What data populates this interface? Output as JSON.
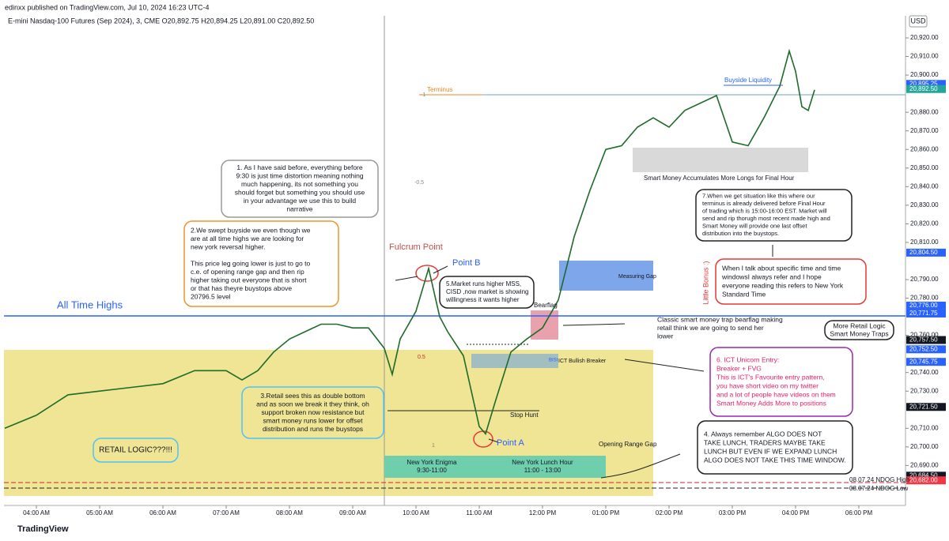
{
  "header": {
    "publisher": "edinxx published on TradingView.com, Jul 10, 2024 16:23 UTC-4",
    "footer": "TradingView"
  },
  "chart_data": {
    "type": "line",
    "title": "E-mini Nasdaq-100 Futures (Sep 2024), 3, CME  O20,892.75 H20,894.25 L20,891.00 C20,892.50",
    "currency": "USD",
    "x": [
      3.5,
      4,
      4.5,
      5,
      5.5,
      6,
      6.5,
      7,
      7.25,
      7.5,
      7.75,
      8,
      8.25,
      8.5,
      8.75,
      9,
      9.25,
      9.5,
      9.625,
      9.75,
      10,
      10.2,
      10.375,
      10.5,
      10.75,
      11,
      11.1,
      11.25,
      11.5,
      11.75,
      12,
      12.25,
      12.5,
      12.75,
      13,
      13.25,
      13.5,
      13.75,
      14,
      14.25,
      14.5,
      14.75,
      15,
      15.25,
      15.5,
      15.75,
      15.9,
      16,
      16.1,
      16.2,
      16.3
    ],
    "series": [
      {
        "name": "E-mini Nasdaq-100 Futures",
        "color": "#1e6b2a",
        "values": [
          20710,
          20717,
          20728,
          20730,
          20732,
          20734,
          20741,
          20741,
          20736,
          20741,
          20751,
          20758,
          20762,
          20766,
          20766,
          20764,
          20764,
          20753,
          20739,
          20758,
          20773,
          20796,
          20770,
          20762,
          20749,
          20711,
          20707,
          20724,
          20751,
          20758,
          20764,
          20779,
          20813,
          20838,
          20860,
          20862,
          20872,
          20877,
          20872,
          20881,
          20885,
          20889,
          20864,
          20862,
          20877,
          20894,
          20913,
          20902,
          20883,
          20881,
          20892
        ]
      }
    ],
    "xlim": [
      3.4875,
      17.7375
    ],
    "xticks": [
      {
        "value": 4,
        "label": "04:00 AM"
      },
      {
        "value": 5,
        "label": "05:00 AM"
      },
      {
        "value": 6,
        "label": "06:00 AM"
      },
      {
        "value": 7,
        "label": "07:00 AM"
      },
      {
        "value": 8,
        "label": "08:00 AM"
      },
      {
        "value": 9,
        "label": "09:00 AM"
      },
      {
        "value": 10,
        "label": "10:00 AM"
      },
      {
        "value": 11,
        "label": "11:00 AM"
      },
      {
        "value": 12,
        "label": "12:00 PM"
      },
      {
        "value": 13,
        "label": "01:00 PM"
      },
      {
        "value": 14,
        "label": "02:00 PM"
      },
      {
        "value": 15,
        "label": "03:00 PM"
      },
      {
        "value": 16,
        "label": "04:00 PM"
      },
      {
        "value": 17,
        "label": "06:00 PM"
      }
    ],
    "ylim": [
      20668.5,
      20928.5
    ],
    "yticks": [
      {
        "value": 20690,
        "label": "20,690.00"
      },
      {
        "value": 20700,
        "label": "20,700.00"
      },
      {
        "value": 20710,
        "label": "20,710.00"
      },
      {
        "value": 20730,
        "label": "20,730.00"
      },
      {
        "value": 20740,
        "label": "20,740.00"
      },
      {
        "value": 20760,
        "label": "20,760.00"
      },
      {
        "value": 20780,
        "label": "20,780.00"
      },
      {
        "value": 20790,
        "label": "20,790.00"
      },
      {
        "value": 20810,
        "label": "20,810.00"
      },
      {
        "value": 20820,
        "label": "20,820.00"
      },
      {
        "value": 20830,
        "label": "20,830.00"
      },
      {
        "value": 20840,
        "label": "20,840.00"
      },
      {
        "value": 20850,
        "label": "20,850.00"
      },
      {
        "value": 20860,
        "label": "20,860.00"
      },
      {
        "value": 20870,
        "label": "20,870.00"
      },
      {
        "value": 20880,
        "label": "20,880.00"
      },
      {
        "value": 20900,
        "label": "20,900.00"
      },
      {
        "value": 20910,
        "label": "20,910.00"
      },
      {
        "value": 20920,
        "label": "20,920.00"
      }
    ],
    "price_tags": [
      {
        "value": 20895.25,
        "label": "20,895.25",
        "color": "#2962ff"
      },
      {
        "value": 20892.5,
        "label": "20,892.50",
        "color": "#26a69a"
      },
      {
        "value": 20804.5,
        "label": "20,804.50",
        "color": "#2962ff"
      },
      {
        "value": 20776,
        "label": "20,776.00",
        "color": "#2962ff"
      },
      {
        "value": 20771.75,
        "label": "20,771.75",
        "color": "#2962ff"
      },
      {
        "value": 20757.5,
        "label": "20,757.50",
        "color": "#131722"
      },
      {
        "value": 20752.5,
        "label": "20,752.50",
        "color": "#2962ff"
      },
      {
        "value": 20745.75,
        "label": "20,745.75",
        "color": "#2962ff"
      },
      {
        "value": 20721.5,
        "label": "20,721.50",
        "color": "#131722"
      },
      {
        "value": 20684.5,
        "label": "20,684.50",
        "color": "#131722"
      },
      {
        "value": 20682,
        "label": "20,682.00",
        "color": "#f23645"
      }
    ],
    "labels": [
      "Fulcrum Point",
      "Point B",
      "Point A",
      "All Time Highs",
      "Terminus",
      "Buyside Liquidity",
      "Smart Money Accumulates More Longs for Final Hour",
      "Measuring Gap",
      "Bearflag",
      "ICT Bullish Breaker",
      "Stop Hunt",
      "Opening Range Gap",
      "08.07.24 NDOG High",
      "08.07.24 NDOG Low",
      "-1",
      "-0.5",
      "0.5",
      "1",
      "BISI",
      "Little Bonus :)"
    ],
    "notes": [
      [
        "1. As I have said before, everything before",
        "9:30 is just time distortion meaning nothing",
        "much happening, its not something you",
        "should forget but something you should use",
        "in your advantage we use this to build",
        "narrative"
      ],
      [
        "2.We swept buyside we even though we",
        "are at all time highs we are looking for",
        "new york reversal higher.",
        "",
        "This price leg going lower is just to go to",
        "c.e. of opening range gap and then rip",
        "higher taking out everyone that is short",
        "or that has theyre buystops above",
        "20796.5 level"
      ],
      [
        "3.Retail sees this as double bottom",
        "and as soon we break it they think, oh",
        "support broken now resistance but",
        "smart money runs lower for offset",
        "distribution and runs the buystops"
      ],
      [
        "RETAIL LOGIC???!!!"
      ],
      [
        "4. Always remember ALGO DOES NOT",
        "TAKE LUNCH, TRADERS MAYBE TAKE",
        "LUNCH BUT EVEN IF WE EXPAND LUNCH",
        "ALGO DOES NOT TAKE THIS TIME WINDOW."
      ],
      [
        "5.Market runs higher MSS,",
        "CISD ,now market is showing",
        "willingness it wants higher"
      ],
      [
        "6. ICT Unicorn Entry:",
        "Breaker + FVG",
        "This is ICT's Favourite entry pattern,",
        "you have short video on my twitter",
        "and a lot of people have videos on them",
        "Smart Money Adds More to positions"
      ],
      [
        "7.When we get situation like this where our",
        "terminus is already delivered before Final Hour",
        "of trading which is 15:00-16:00 EST. Market will",
        "send and rip thorugh most recent made high and",
        "Smart Money will provide one last offset",
        "distribution into the buystops."
      ],
      [
        "When I talk about specific time and time",
        "windowsI always refer and I hope",
        "everyone reading this refers to New York",
        "Standard Time"
      ],
      [
        "Classic smart money trap bearflag making",
        "retail think we are going to send her",
        "lower"
      ],
      [
        "More Retail Logic",
        "Smart Money Traps"
      ],
      [
        "New York Enigma",
        "9:30-11:00"
      ],
      [
        "New York Lunch Hour",
        "11:00 - 13:00"
      ]
    ]
  }
}
